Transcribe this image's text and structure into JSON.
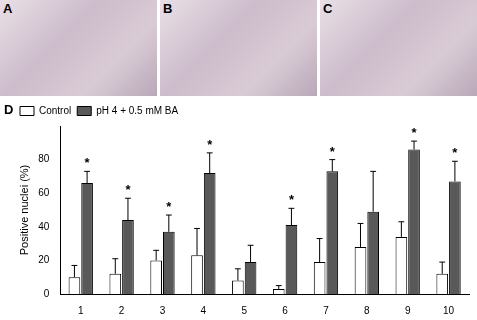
{
  "panels": [
    {
      "label": "A"
    },
    {
      "label": "B"
    },
    {
      "label": "C"
    }
  ],
  "chart_data": {
    "type": "bar",
    "categories": [
      "1",
      "2",
      "3",
      "4",
      "5",
      "6",
      "7",
      "8",
      "9",
      "10"
    ],
    "y_label": "Positive nuclei (%)",
    "series": [
      {
        "name": "Control",
        "color": "#ffffff",
        "values": [
          10,
          12,
          20,
          23,
          8,
          3,
          19,
          28,
          34,
          12
        ],
        "errors": [
          7,
          9,
          6,
          16,
          7,
          2,
          14,
          14,
          9,
          7
        ]
      },
      {
        "name": "pH 4 + 0.5 mM BA",
        "color": "#595959",
        "values": [
          66,
          44,
          37,
          72,
          19,
          41,
          73,
          49,
          86,
          67
        ],
        "errors": [
          7,
          13,
          10,
          12,
          10,
          10,
          7,
          24,
          5,
          12
        ]
      }
    ],
    "ylim": [
      0,
      100
    ],
    "yticks": [
      0,
      20,
      40,
      60,
      80
    ],
    "grid": false,
    "legend": "upper left",
    "annotations": [
      {
        "text": "D"
      },
      {
        "text": "*",
        "category": "1"
      },
      {
        "text": "*",
        "category": "2"
      },
      {
        "text": "*",
        "category": "3"
      },
      {
        "text": "*",
        "category": "4"
      },
      {
        "text": "*",
        "category": "6"
      },
      {
        "text": "*",
        "category": "7"
      },
      {
        "text": "*",
        "category": "9"
      },
      {
        "text": "*",
        "category": "10"
      }
    ]
  }
}
